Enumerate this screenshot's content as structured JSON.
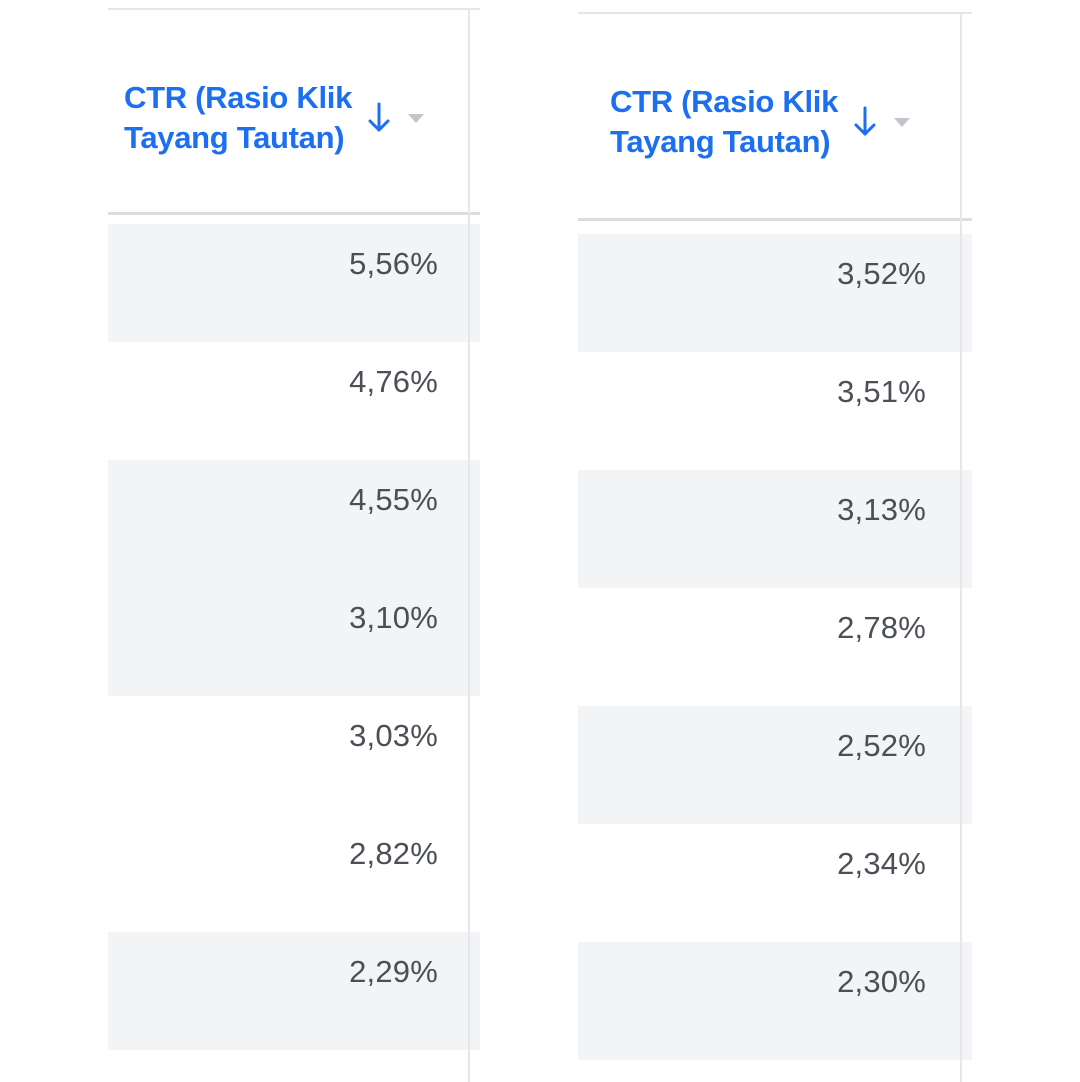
{
  "tables": [
    {
      "header": {
        "title_line1": "CTR (Rasio Klik",
        "title_line2": "Tayang Tautan)",
        "sort_icon": "arrow-down-icon",
        "menu_icon": "caret-down-icon"
      },
      "values": [
        "5,56%",
        "4,76%",
        "4,55%",
        "3,10%",
        "3,03%",
        "2,82%",
        "2,29%"
      ]
    },
    {
      "header": {
        "title_line1": "CTR (Rasio Klik",
        "title_line2": "Tayang Tautan)",
        "sort_icon": "arrow-down-icon",
        "menu_icon": "caret-down-icon"
      },
      "values": [
        "3,52%",
        "3,51%",
        "3,13%",
        "2,78%",
        "2,52%",
        "2,34%",
        "2,30%"
      ]
    }
  ],
  "colors": {
    "header_text": "#1d6ff2",
    "cell_text": "#4b4f56",
    "row_shade": "#f3f4f6",
    "divider": "#dcdde1"
  }
}
